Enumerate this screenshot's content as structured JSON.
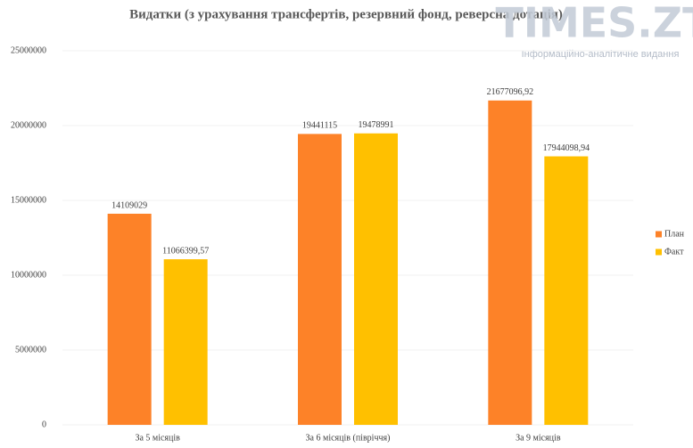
{
  "chart_data": {
    "type": "bar",
    "title": "Видатки (з урахування трансфертів, резервний фонд, реверсна дотація)",
    "categories": [
      "За 5 місяців",
      "За 6 місяців (півріччя)",
      "За 9 місяців"
    ],
    "series": [
      {
        "name": "План",
        "color": "#fd8228",
        "values": [
          14109029,
          19441115,
          21677096.92
        ],
        "value_labels": [
          "14109029",
          "19441115",
          "21677096,92"
        ]
      },
      {
        "name": "Факт",
        "color": "#ffc000",
        "values": [
          11066399.57,
          19478991,
          17944098.94
        ],
        "value_labels": [
          "11066399,57",
          "19478991",
          "17944098,94"
        ]
      }
    ],
    "ylim": [
      0,
      25000000
    ],
    "yticks": [
      0,
      5000000,
      10000000,
      15000000,
      20000000,
      25000000
    ],
    "grid": true,
    "legend": "right"
  },
  "watermark": {
    "title": "TIMES.ZT",
    "subtitle": "Інформаційно-аналітичне видання"
  }
}
